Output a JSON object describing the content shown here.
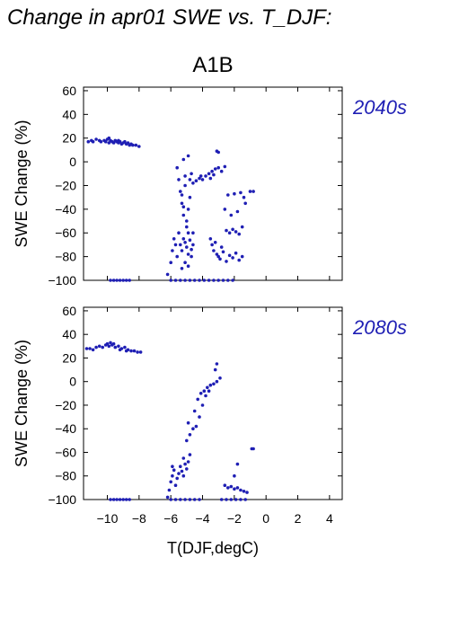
{
  "page_title": "Change in apr01 SWE vs. T_DJF:",
  "chart_data": {
    "type": "scatter",
    "scenario": "A1B",
    "xlabel": "T(DJF,degC)",
    "ylabel": "SWE Change (%)",
    "xlim": [
      -11.5,
      4.8
    ],
    "ylim": [
      -100,
      63
    ],
    "x_ticks": [
      -10,
      -8,
      -6,
      -4,
      -2,
      0,
      2,
      4
    ],
    "y_ticks": [
      -100,
      -80,
      -60,
      -40,
      -20,
      0,
      20,
      40,
      60
    ],
    "point_color": "#1f1fb4",
    "panels": [
      {
        "label": "2040s",
        "points": [
          [
            -11.2,
            17
          ],
          [
            -11.0,
            18
          ],
          [
            -10.9,
            17
          ],
          [
            -10.7,
            19
          ],
          [
            -10.5,
            18
          ],
          [
            -10.4,
            17
          ],
          [
            -10.2,
            18
          ],
          [
            -10.1,
            17
          ],
          [
            -10.0,
            19
          ],
          [
            -9.9,
            16
          ],
          [
            -9.8,
            18
          ],
          [
            -9.7,
            17
          ],
          [
            -9.6,
            16
          ],
          [
            -9.5,
            18
          ],
          [
            -9.4,
            17
          ],
          [
            -9.3,
            16
          ],
          [
            -9.2,
            17
          ],
          [
            -9.1,
            15
          ],
          [
            -9.0,
            16
          ],
          [
            -8.9,
            17
          ],
          [
            -8.8,
            15
          ],
          [
            -8.7,
            16
          ],
          [
            -8.6,
            14
          ],
          [
            -8.5,
            15
          ],
          [
            -8.4,
            14
          ],
          [
            -8.2,
            14
          ],
          [
            -8.0,
            13
          ],
          [
            -9.9,
            20
          ],
          [
            -9.3,
            18
          ],
          [
            -9.8,
            -100
          ],
          [
            -9.6,
            -100
          ],
          [
            -9.4,
            -100
          ],
          [
            -9.2,
            -100
          ],
          [
            -9.0,
            -100
          ],
          [
            -8.8,
            -100
          ],
          [
            -8.6,
            -100
          ],
          [
            -6.2,
            -95
          ],
          [
            -6.0,
            -85
          ],
          [
            -5.9,
            -75
          ],
          [
            -5.8,
            -65
          ],
          [
            -5.7,
            -70
          ],
          [
            -5.6,
            -80
          ],
          [
            -5.5,
            -60
          ],
          [
            -5.4,
            -70
          ],
          [
            -5.3,
            -75
          ],
          [
            -5.2,
            -65
          ],
          [
            -5.1,
            -68
          ],
          [
            -5.0,
            -72
          ],
          [
            -4.9,
            -78
          ],
          [
            -4.8,
            -66
          ],
          [
            -4.7,
            -74
          ],
          [
            -4.6,
            -70
          ],
          [
            -5.3,
            -90
          ],
          [
            -5.1,
            -85
          ],
          [
            -4.9,
            -88
          ],
          [
            -4.7,
            -80
          ],
          [
            -4.6,
            -60
          ],
          [
            -5.6,
            -5
          ],
          [
            -5.5,
            -15
          ],
          [
            -5.4,
            -25
          ],
          [
            -5.3,
            -35
          ],
          [
            -5.2,
            -45
          ],
          [
            -5.1,
            -20
          ],
          [
            -5.0,
            -55
          ],
          [
            -4.9,
            -40
          ],
          [
            -4.8,
            -30
          ],
          [
            -4.7,
            -10
          ],
          [
            -5.3,
            -28
          ],
          [
            -5.1,
            -12
          ],
          [
            -5.0,
            -50
          ],
          [
            -4.9,
            -60
          ],
          [
            -5.2,
            -38
          ],
          [
            -4.8,
            -15
          ],
          [
            -4.6,
            -18
          ],
          [
            -4.4,
            -16
          ],
          [
            -4.2,
            -14
          ],
          [
            -4.0,
            -15
          ],
          [
            -3.8,
            -12
          ],
          [
            -3.6,
            -10
          ],
          [
            -3.4,
            -8
          ],
          [
            -3.2,
            -6
          ],
          [
            -3.0,
            -5
          ],
          [
            -2.8,
            -8
          ],
          [
            -2.6,
            -4
          ],
          [
            -3.5,
            -14
          ],
          [
            -3.3,
            -11
          ],
          [
            -4.1,
            -12
          ],
          [
            -3.1,
            9
          ],
          [
            -3.0,
            8
          ],
          [
            -4.9,
            5
          ],
          [
            -5.2,
            2
          ],
          [
            -3.5,
            -65
          ],
          [
            -3.4,
            -70
          ],
          [
            -3.3,
            -75
          ],
          [
            -3.1,
            -78
          ],
          [
            -3.0,
            -80
          ],
          [
            -2.9,
            -82
          ],
          [
            -2.7,
            -76
          ],
          [
            -2.5,
            -84
          ],
          [
            -2.3,
            -79
          ],
          [
            -2.1,
            -81
          ],
          [
            -1.9,
            -77
          ],
          [
            -1.7,
            -83
          ],
          [
            -1.5,
            -80
          ],
          [
            -3.2,
            -68
          ],
          [
            -2.8,
            -72
          ],
          [
            -2.5,
            -58
          ],
          [
            -2.3,
            -60
          ],
          [
            -2.1,
            -57
          ],
          [
            -1.9,
            -59
          ],
          [
            -1.7,
            -61
          ],
          [
            -2.2,
            -45
          ],
          [
            -1.8,
            -42
          ],
          [
            -2.6,
            -40
          ],
          [
            -2.4,
            -28
          ],
          [
            -2.0,
            -27
          ],
          [
            -1.6,
            -26
          ],
          [
            -1.4,
            -30
          ],
          [
            -1.3,
            -35
          ],
          [
            -1.0,
            -25
          ],
          [
            -0.8,
            -25
          ],
          [
            -1.5,
            -55
          ],
          [
            -6.0,
            -100
          ],
          [
            -5.7,
            -100
          ],
          [
            -5.4,
            -100
          ],
          [
            -5.1,
            -100
          ],
          [
            -4.8,
            -100
          ],
          [
            -4.5,
            -100
          ],
          [
            -4.2,
            -100
          ],
          [
            -3.9,
            -100
          ],
          [
            -3.6,
            -100
          ],
          [
            -3.3,
            -100
          ],
          [
            -3.0,
            -100
          ],
          [
            -2.7,
            -100
          ],
          [
            -2.4,
            -100
          ],
          [
            -2.1,
            -100
          ]
        ]
      },
      {
        "label": "2080s",
        "points": [
          [
            -11.3,
            28
          ],
          [
            -11.1,
            28
          ],
          [
            -10.9,
            27
          ],
          [
            -10.7,
            29
          ],
          [
            -10.5,
            30
          ],
          [
            -10.3,
            29
          ],
          [
            -10.1,
            31
          ],
          [
            -9.9,
            30
          ],
          [
            -9.7,
            31
          ],
          [
            -9.5,
            29
          ],
          [
            -9.3,
            30
          ],
          [
            -9.1,
            28
          ],
          [
            -8.9,
            29
          ],
          [
            -8.7,
            27
          ],
          [
            -8.5,
            26
          ],
          [
            -8.3,
            26
          ],
          [
            -8.1,
            25
          ],
          [
            -7.9,
            25
          ],
          [
            -9.6,
            32
          ],
          [
            -9.8,
            33
          ],
          [
            -10.0,
            32
          ],
          [
            -9.2,
            27
          ],
          [
            -8.8,
            26
          ],
          [
            -9.8,
            -100
          ],
          [
            -9.6,
            -100
          ],
          [
            -9.4,
            -100
          ],
          [
            -9.2,
            -100
          ],
          [
            -9.0,
            -100
          ],
          [
            -8.8,
            -100
          ],
          [
            -8.6,
            -100
          ],
          [
            -6.2,
            -98
          ],
          [
            -6.1,
            -92
          ],
          [
            -6.0,
            -85
          ],
          [
            -5.9,
            -80
          ],
          [
            -5.8,
            -75
          ],
          [
            -5.7,
            -88
          ],
          [
            -5.6,
            -82
          ],
          [
            -5.5,
            -78
          ],
          [
            -5.4,
            -72
          ],
          [
            -5.3,
            -76
          ],
          [
            -5.2,
            -80
          ],
          [
            -5.1,
            -70
          ],
          [
            -5.0,
            -74
          ],
          [
            -4.9,
            -68
          ],
          [
            -5.2,
            -65
          ],
          [
            -4.8,
            -62
          ],
          [
            -5.9,
            -72
          ],
          [
            -5.0,
            -50
          ],
          [
            -4.8,
            -45
          ],
          [
            -4.6,
            -40
          ],
          [
            -4.4,
            -38
          ],
          [
            -4.2,
            -30
          ],
          [
            -4.0,
            -20
          ],
          [
            -4.9,
            -35
          ],
          [
            -4.5,
            -25
          ],
          [
            -4.3,
            -15
          ],
          [
            -4.1,
            -10
          ],
          [
            -3.9,
            -8
          ],
          [
            -3.7,
            -5
          ],
          [
            -3.5,
            -3
          ],
          [
            -3.3,
            -2
          ],
          [
            -3.1,
            0
          ],
          [
            -2.9,
            3
          ],
          [
            -3.2,
            10
          ],
          [
            -3.1,
            15
          ],
          [
            -3.8,
            -12
          ],
          [
            -3.6,
            -8
          ],
          [
            -2.6,
            -88
          ],
          [
            -2.4,
            -90
          ],
          [
            -2.2,
            -89
          ],
          [
            -2.0,
            -91
          ],
          [
            -1.8,
            -90
          ],
          [
            -1.6,
            -92
          ],
          [
            -1.4,
            -93
          ],
          [
            -1.2,
            -94
          ],
          [
            -2.0,
            -80
          ],
          [
            -0.9,
            -57
          ],
          [
            -0.8,
            -57
          ],
          [
            -1.8,
            -70
          ],
          [
            -6.0,
            -100
          ],
          [
            -5.7,
            -100
          ],
          [
            -5.4,
            -100
          ],
          [
            -5.1,
            -100
          ],
          [
            -4.8,
            -100
          ],
          [
            -4.5,
            -100
          ],
          [
            -4.2,
            -100
          ],
          [
            -2.8,
            -100
          ],
          [
            -2.5,
            -100
          ],
          [
            -2.2,
            -100
          ],
          [
            -1.9,
            -100
          ],
          [
            -1.6,
            -100
          ],
          [
            -1.3,
            -100
          ]
        ]
      }
    ]
  }
}
